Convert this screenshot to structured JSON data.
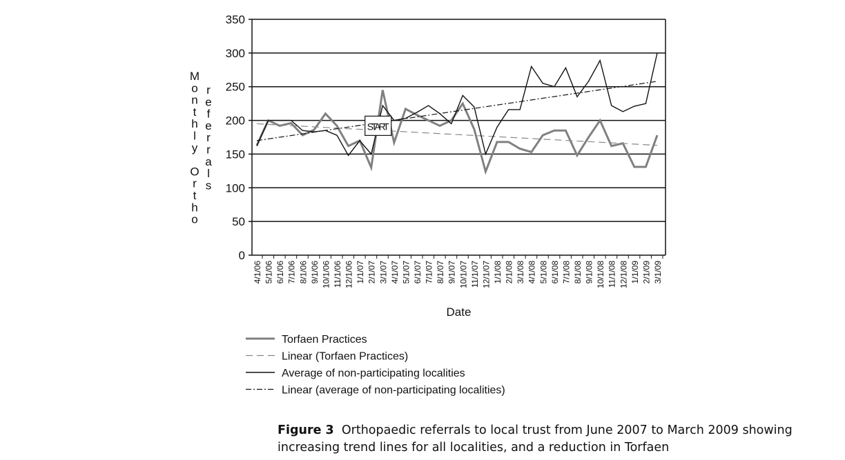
{
  "chart_data": {
    "type": "line",
    "title": "",
    "xlabel": "Date",
    "ylabel_col1": "Monthly Ortho",
    "ylabel_col2": "referrals",
    "ylim": [
      0,
      350
    ],
    "yticks": [
      0,
      50,
      100,
      150,
      200,
      250,
      300,
      350
    ],
    "grid": "horizontal",
    "x": [
      "4/1/06",
      "5/1/06",
      "6/1/06",
      "7/1/06",
      "8/1/06",
      "9/1/06",
      "10/1/06",
      "11/1/06",
      "12/1/06",
      "1/1/07",
      "2/1/07",
      "3/1/07",
      "4/1/07",
      "5/1/07",
      "6/1/07",
      "7/1/07",
      "8/1/07",
      "9/1/07",
      "10/1/07",
      "11/1/07",
      "12/1/07",
      "1/1/08",
      "2/1/08",
      "3/1/08",
      "4/1/08",
      "5/1/08",
      "6/1/08",
      "7/1/08",
      "8/1/08",
      "9/1/08",
      "10/1/08",
      "11/1/08",
      "12/1/08",
      "1/1/09",
      "2/1/09",
      "3/1/09"
    ],
    "series": [
      {
        "name": "Torfaen Practices",
        "color": "#808080",
        "style": "thick",
        "values": [
          163,
          200,
          192,
          196,
          178,
          186,
          210,
          192,
          162,
          170,
          130,
          245,
          167,
          217,
          208,
          200,
          192,
          200,
          225,
          187,
          124,
          168,
          168,
          158,
          153,
          178,
          185,
          185,
          148,
          175,
          200,
          162,
          166,
          131,
          131,
          178
        ]
      },
      {
        "name": "Linear (Torfaen Practices)",
        "color": "#888888",
        "style": "dashed",
        "trend": [
          195,
          163
        ]
      },
      {
        "name": "Average of non-participating localities",
        "color": "#111111",
        "style": "thin",
        "values": [
          162,
          200,
          200,
          200,
          185,
          183,
          185,
          178,
          148,
          170,
          150,
          222,
          200,
          203,
          212,
          222,
          210,
          195,
          237,
          220,
          150,
          190,
          216,
          216,
          280,
          255,
          250,
          278,
          235,
          258,
          289,
          222,
          213,
          221,
          225,
          300
        ]
      },
      {
        "name": "Linear (average of non-participating localities)",
        "color": "#111111",
        "style": "dashdot",
        "trend": [
          170,
          258
        ]
      }
    ],
    "annotations": [
      {
        "text": "START",
        "x": "2/1/07",
        "y": 192
      }
    ],
    "legend_position": "bottom"
  },
  "caption": {
    "label": "Figure 3",
    "text": "Orthopaedic referrals to local trust from June 2007 to March 2009 showing increasing trend lines for all localities, and a reduction in Torfaen"
  }
}
